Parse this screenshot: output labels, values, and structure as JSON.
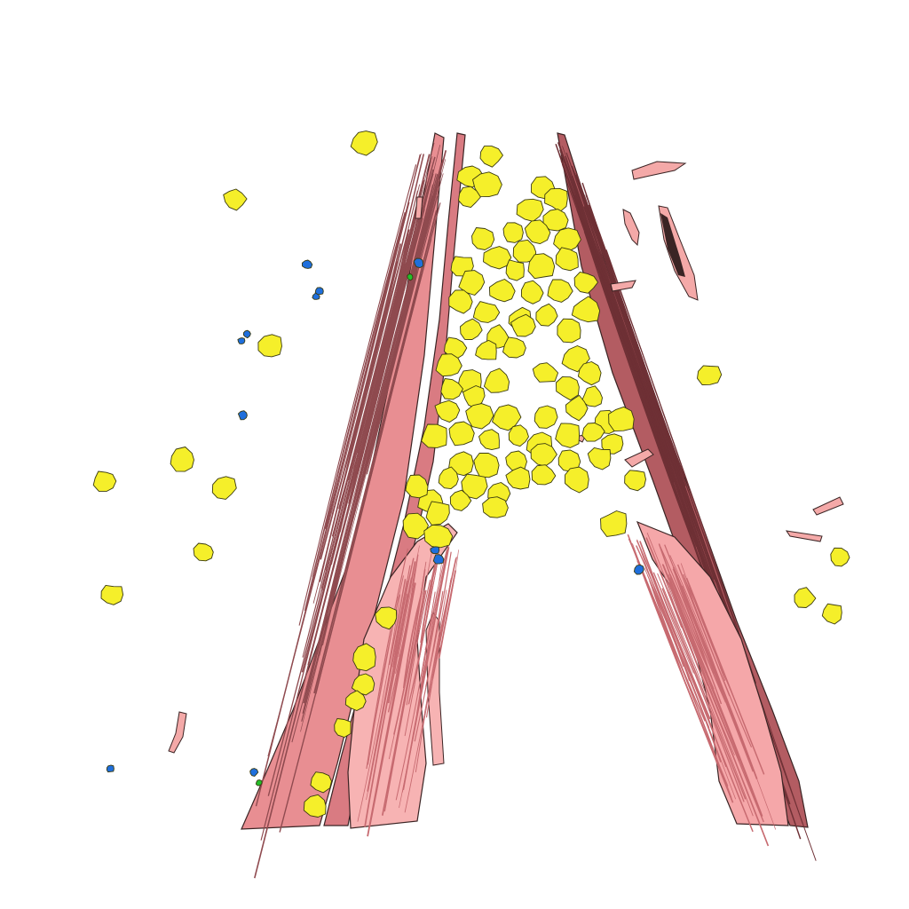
{
  "scene": {
    "description_kind": "3d-render-vessel-bifurcation",
    "colors": {
      "background": "#ffffff",
      "wall_light": "#f4a9a8",
      "wall_dark": "#8f4a4f",
      "outline": "#3a2424",
      "cell_yellow": "#f5ef2a",
      "cell_blue": "#1f6fdc",
      "cell_green": "#22c02a"
    }
  }
}
